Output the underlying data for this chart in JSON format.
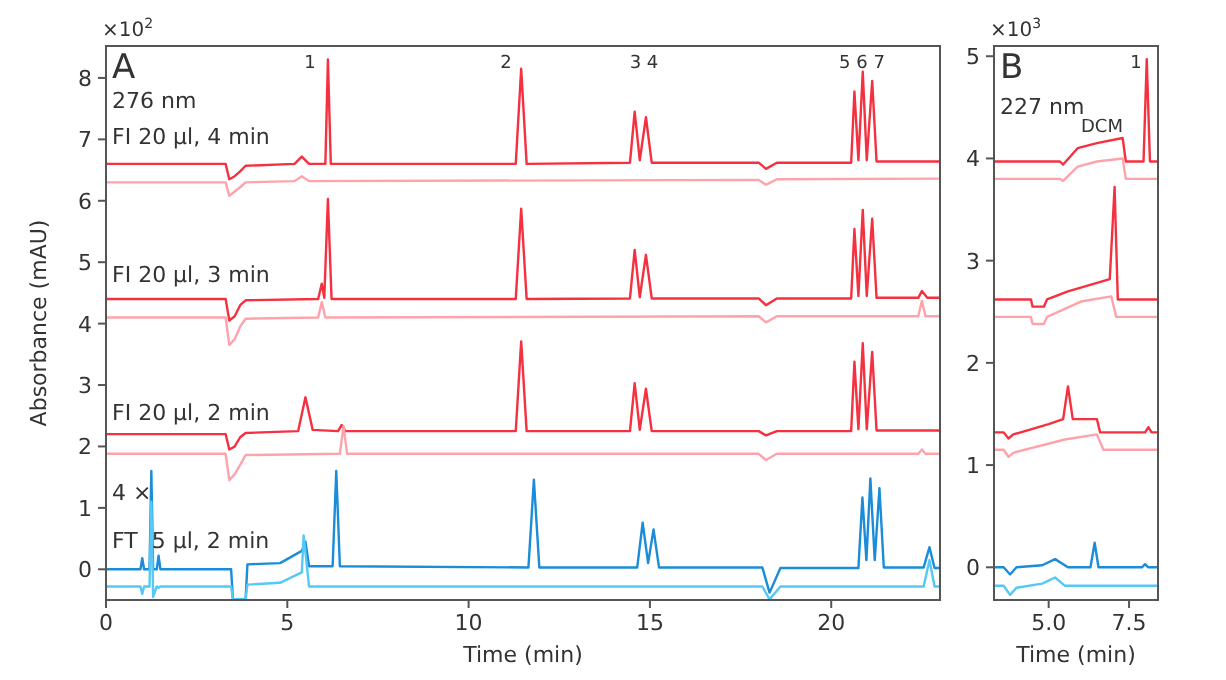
{
  "chart_data": [
    {
      "type": "line",
      "xlabel": "Time (min)",
      "ylabel": "Absorbance (mAU)",
      "xlim": [
        0,
        23
      ],
      "ylim": [
        -0.5,
        8.52
      ],
      "xticks": [
        0,
        5,
        10,
        15,
        20
      ],
      "yticks": [
        0,
        1,
        2,
        3,
        4,
        5,
        6,
        7,
        8
      ],
      "grid": false,
      "marker": "none",
      "line_style": "solid",
      "annotations": [
        "×10$^{2}$",
        "A",
        "276 nm",
        "FI 20 µl, 4 min",
        "FI 20 µl, 3 min",
        "FI 20 µl, 2 min",
        "4 ×",
        "FT  5 µl, 2 min",
        "1",
        "2",
        "3 4",
        "5 6 7"
      ],
      "series": [
        {
          "color": "#f5303f",
          "x": [
            0,
            3.3,
            3.4,
            3.55,
            3.7,
            3.85,
            5.2,
            5.4,
            5.6,
            6.05,
            6.12,
            6.2,
            11.3,
            11.45,
            11.6,
            14.45,
            14.58,
            14.72,
            14.89,
            15.05,
            18.0,
            18.2,
            18.5,
            20.55,
            20.64,
            20.75,
            20.87,
            20.98,
            21.13,
            21.25,
            22.5,
            23
          ],
          "values": [
            6.6,
            6.6,
            6.35,
            6.4,
            6.48,
            6.57,
            6.6,
            6.72,
            6.6,
            6.6,
            8.3,
            6.6,
            6.6,
            8.15,
            6.6,
            6.62,
            7.45,
            6.66,
            7.36,
            6.62,
            6.62,
            6.52,
            6.62,
            6.62,
            7.78,
            6.66,
            8.1,
            6.66,
            7.95,
            6.64,
            6.64,
            6.64
          ]
        },
        {
          "color": "#ffa3ab",
          "x": [
            0,
            3.3,
            3.4,
            3.55,
            3.7,
            3.85,
            5.2,
            5.4,
            5.6,
            18.0,
            18.2,
            18.5,
            23
          ],
          "values": [
            6.3,
            6.3,
            6.08,
            6.15,
            6.22,
            6.3,
            6.32,
            6.4,
            6.32,
            6.34,
            6.26,
            6.35,
            6.36
          ]
        },
        {
          "color": "#f5303f",
          "x": [
            0,
            3.3,
            3.4,
            3.55,
            3.7,
            3.85,
            5.85,
            5.95,
            6.02,
            6.12,
            6.22,
            11.3,
            11.45,
            11.6,
            14.45,
            14.58,
            14.72,
            14.89,
            15.05,
            18.0,
            18.2,
            18.5,
            20.55,
            20.64,
            20.75,
            20.87,
            20.98,
            21.13,
            21.25,
            22.4,
            22.5,
            22.65,
            23
          ],
          "values": [
            4.4,
            4.4,
            4.05,
            4.12,
            4.3,
            4.38,
            4.4,
            4.65,
            4.42,
            6.03,
            4.4,
            4.4,
            5.87,
            4.4,
            4.41,
            5.2,
            4.43,
            5.12,
            4.41,
            4.41,
            4.3,
            4.41,
            4.41,
            5.54,
            4.45,
            5.85,
            4.45,
            5.71,
            4.42,
            4.42,
            4.53,
            4.42,
            4.42
          ]
        },
        {
          "color": "#ffa3ab",
          "x": [
            0,
            3.3,
            3.4,
            3.55,
            3.7,
            3.85,
            5.85,
            5.95,
            6.05,
            18.0,
            18.2,
            18.5,
            22.4,
            22.5,
            22.6,
            23
          ],
          "values": [
            4.1,
            4.1,
            3.65,
            3.75,
            3.95,
            4.08,
            4.1,
            4.35,
            4.1,
            4.12,
            4.02,
            4.12,
            4.12,
            4.37,
            4.12,
            4.12
          ]
        },
        {
          "color": "#f5303f",
          "x": [
            0,
            3.3,
            3.4,
            3.55,
            3.7,
            3.85,
            5.3,
            5.5,
            5.7,
            6.4,
            6.5,
            6.6,
            11.3,
            11.45,
            11.6,
            14.45,
            14.58,
            14.72,
            14.89,
            15.05,
            18.0,
            18.2,
            18.5,
            20.55,
            20.64,
            20.75,
            20.87,
            20.98,
            21.13,
            21.25,
            23
          ],
          "values": [
            2.2,
            2.2,
            1.95,
            2.0,
            2.15,
            2.22,
            2.25,
            2.8,
            2.27,
            2.25,
            2.35,
            2.25,
            2.25,
            3.71,
            2.25,
            2.25,
            3.03,
            2.27,
            2.94,
            2.25,
            2.25,
            2.18,
            2.25,
            2.25,
            3.38,
            2.28,
            3.68,
            2.28,
            3.54,
            2.26,
            2.26
          ]
        },
        {
          "color": "#ffa3ab",
          "x": [
            0,
            3.3,
            3.4,
            3.55,
            3.7,
            3.85,
            6.45,
            6.55,
            6.65,
            18.0,
            18.2,
            18.5,
            22.4,
            22.5,
            22.6,
            23
          ],
          "values": [
            1.88,
            1.88,
            1.45,
            1.55,
            1.7,
            1.86,
            1.88,
            2.33,
            1.88,
            1.88,
            1.78,
            1.88,
            1.88,
            1.95,
            1.88,
            1.88
          ]
        },
        {
          "color": "#1a8cd8",
          "x": [
            0,
            0.95,
            1.0,
            1.05,
            1.2,
            1.25,
            1.3,
            1.4,
            1.45,
            1.5,
            3.45,
            3.5,
            3.85,
            3.9,
            4.8,
            5.4,
            5.5,
            5.6,
            6.25,
            6.35,
            6.45,
            11.65,
            11.8,
            11.95,
            14.65,
            14.8,
            14.95,
            15.1,
            15.25,
            18.1,
            18.3,
            18.6,
            20.75,
            20.86,
            20.97,
            21.08,
            21.2,
            21.33,
            21.45,
            22.55,
            22.71,
            22.85,
            23
          ],
          "values": [
            0,
            0,
            0.18,
            0,
            0,
            1.6,
            0,
            0,
            0.22,
            0,
            0,
            -0.49,
            -0.49,
            0.08,
            0.1,
            0.3,
            0.45,
            0.05,
            0.05,
            1.6,
            0.05,
            0.03,
            1.46,
            0.03,
            0.03,
            0.76,
            0.1,
            0.65,
            0.03,
            0.03,
            -0.38,
            0.02,
            0.02,
            1.17,
            0.15,
            1.48,
            0.15,
            1.32,
            0.03,
            0.03,
            0.36,
            0.02,
            0.02
          ]
        },
        {
          "color": "#55c8f5",
          "x": [
            0,
            0.95,
            1.0,
            1.05,
            1.2,
            1.25,
            1.3,
            1.4,
            1.45,
            1.5,
            3.45,
            3.5,
            3.85,
            3.9,
            4.8,
            5.4,
            5.45,
            5.6,
            18.1,
            18.3,
            18.6,
            22.55,
            22.71,
            22.85,
            23
          ],
          "values": [
            -0.28,
            -0.28,
            -0.4,
            -0.28,
            -0.28,
            1.1,
            -0.45,
            -0.28,
            -0.3,
            -0.28,
            -0.28,
            -0.49,
            -0.49,
            -0.25,
            -0.22,
            -0.05,
            0.55,
            -0.28,
            -0.28,
            -0.49,
            -0.28,
            -0.28,
            0.15,
            -0.28,
            -0.28
          ]
        }
      ]
    },
    {
      "type": "line",
      "xlabel": "Time (min)",
      "xlim": [
        3.3,
        8.4
      ],
      "ylim": [
        -0.32,
        5.1
      ],
      "xticks": [
        {
          "value": 5,
          "label": "5.0"
        },
        {
          "value": 7.5,
          "label": "7.5"
        }
      ],
      "yticks": [
        0,
        1,
        2,
        3,
        4,
        5
      ],
      "grid": false,
      "marker": "none",
      "line_style": "solid",
      "annotations": [
        "×10$^{3}$",
        "B",
        "227 nm",
        "DCM",
        "1"
      ],
      "series": [
        {
          "color": "#f5303f",
          "x": [
            3.3,
            5.35,
            5.45,
            5.9,
            6.5,
            7.3,
            7.4,
            7.95,
            8.05,
            8.15,
            8.4
          ],
          "values": [
            3.97,
            3.97,
            3.94,
            4.1,
            4.15,
            4.2,
            3.97,
            3.97,
            4.97,
            3.97,
            3.97
          ]
        },
        {
          "color": "#ffa3ab",
          "x": [
            3.3,
            5.35,
            5.45,
            5.9,
            6.5,
            7.3,
            7.4,
            8.4
          ],
          "values": [
            3.8,
            3.8,
            3.78,
            3.92,
            3.97,
            4.0,
            3.8,
            3.8
          ]
        },
        {
          "color": "#f5303f",
          "x": [
            3.3,
            4.45,
            4.5,
            4.85,
            4.95,
            5.6,
            6.9,
            7.05,
            7.15,
            7.25,
            8.4
          ],
          "values": [
            2.62,
            2.62,
            2.55,
            2.55,
            2.62,
            2.7,
            2.82,
            3.72,
            2.62,
            2.62,
            2.62
          ]
        },
        {
          "color": "#ffa3ab",
          "x": [
            3.3,
            4.45,
            4.5,
            4.85,
            4.95,
            6.0,
            6.95,
            7.1,
            8.4
          ],
          "values": [
            2.45,
            2.45,
            2.38,
            2.38,
            2.45,
            2.6,
            2.65,
            2.45,
            2.45
          ]
        },
        {
          "color": "#f5303f",
          "x": [
            3.3,
            3.6,
            3.75,
            3.9,
            5.0,
            5.45,
            5.6,
            5.75,
            6.5,
            6.6,
            8.0,
            8.1,
            8.2,
            8.4
          ],
          "values": [
            1.32,
            1.32,
            1.26,
            1.3,
            1.4,
            1.45,
            1.77,
            1.45,
            1.45,
            1.32,
            1.32,
            1.37,
            1.32,
            1.32
          ]
        },
        {
          "color": "#ffa3ab",
          "x": [
            3.3,
            3.6,
            3.75,
            3.9,
            5.5,
            6.5,
            6.7,
            8.4
          ],
          "values": [
            1.15,
            1.15,
            1.08,
            1.12,
            1.25,
            1.3,
            1.15,
            1.15
          ]
        },
        {
          "color": "#1a8cd8",
          "x": [
            3.3,
            3.6,
            3.8,
            4.0,
            4.8,
            5.2,
            5.6,
            6.3,
            6.43,
            6.55,
            7.9,
            8.0,
            8.1,
            8.4
          ],
          "values": [
            0,
            0,
            -0.07,
            0,
            0.02,
            0.08,
            0,
            0,
            0.24,
            0,
            0,
            0.03,
            0,
            0
          ]
        },
        {
          "color": "#55c8f5",
          "x": [
            3.3,
            3.6,
            3.8,
            4.0,
            4.8,
            5.2,
            5.5,
            8.4
          ],
          "values": [
            -0.18,
            -0.18,
            -0.27,
            -0.2,
            -0.16,
            -0.1,
            -0.18,
            -0.18
          ]
        }
      ]
    }
  ]
}
